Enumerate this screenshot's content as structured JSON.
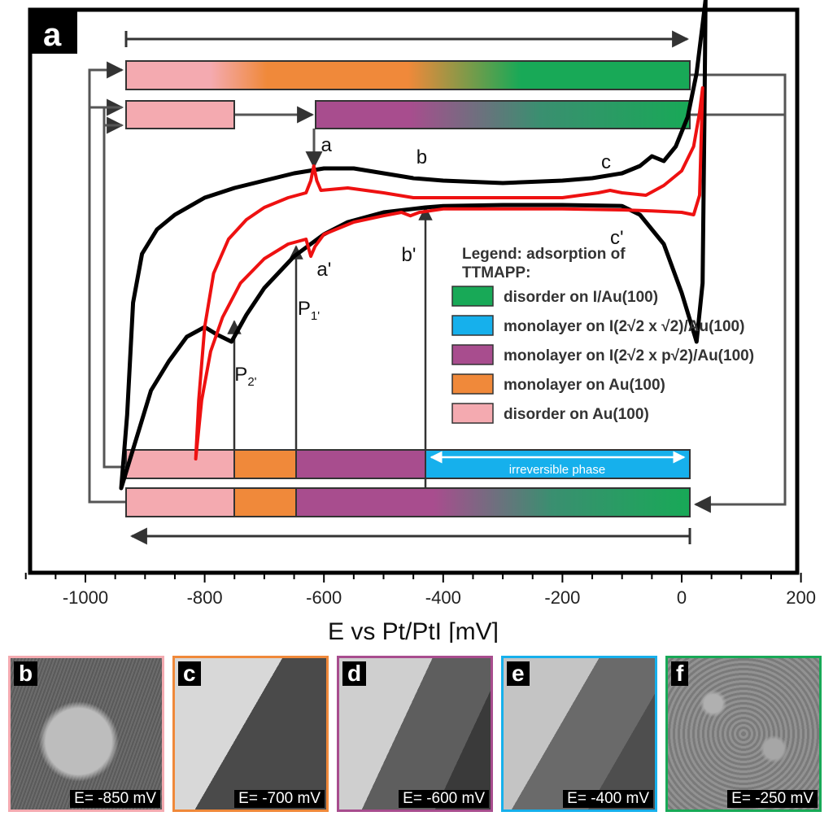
{
  "figure": {
    "panel_label": "a"
  },
  "chart_data": {
    "type": "line",
    "xlabel": "E vs Pt/PtI [mV]",
    "xlim": [
      -1100,
      200
    ],
    "xticks": [
      -1000,
      -800,
      -600,
      -400,
      -200,
      0,
      200
    ],
    "grid": false,
    "series": [
      {
        "name": "",
        "color": "#000000",
        "anodic": [
          [
            -940,
            0.1
          ],
          [
            -930,
            0.25
          ],
          [
            -920,
            0.48
          ],
          [
            -905,
            0.58
          ],
          [
            -880,
            0.63
          ],
          [
            -850,
            0.66
          ],
          [
            -800,
            0.695
          ],
          [
            -750,
            0.715
          ],
          [
            -700,
            0.73
          ],
          [
            -650,
            0.745
          ],
          [
            -600,
            0.755
          ],
          [
            -550,
            0.755
          ],
          [
            -500,
            0.745
          ],
          [
            -450,
            0.735
          ],
          [
            -400,
            0.73
          ],
          [
            -300,
            0.725
          ],
          [
            -200,
            0.73
          ],
          [
            -150,
            0.735
          ],
          [
            -100,
            0.745
          ],
          [
            -70,
            0.76
          ],
          [
            -50,
            0.78
          ],
          [
            -30,
            0.77
          ],
          [
            -10,
            0.8
          ],
          [
            10,
            0.86
          ],
          [
            25,
            0.95
          ],
          [
            35,
            1.05
          ],
          [
            40,
            1.1
          ]
        ],
        "cathodic": [
          [
            40,
            1.1
          ],
          [
            38,
            0.85
          ],
          [
            35,
            0.52
          ],
          [
            25,
            0.4
          ],
          [
            0,
            0.5
          ],
          [
            -30,
            0.6
          ],
          [
            -70,
            0.66
          ],
          [
            -100,
            0.678
          ],
          [
            -200,
            0.68
          ],
          [
            -300,
            0.68
          ],
          [
            -400,
            0.678
          ],
          [
            -430,
            0.675
          ],
          [
            -500,
            0.665
          ],
          [
            -560,
            0.645
          ],
          [
            -600,
            0.62
          ],
          [
            -650,
            0.575
          ],
          [
            -700,
            0.51
          ],
          [
            -730,
            0.455
          ],
          [
            -755,
            0.4
          ],
          [
            -780,
            0.415
          ],
          [
            -800,
            0.43
          ],
          [
            -830,
            0.41
          ],
          [
            -860,
            0.36
          ],
          [
            -890,
            0.3
          ],
          [
            -910,
            0.22
          ],
          [
            -930,
            0.14
          ],
          [
            -940,
            0.1
          ]
        ]
      },
      {
        "name": "",
        "color": "#ee1111",
        "anodic": [
          [
            -815,
            0.16
          ],
          [
            -810,
            0.28
          ],
          [
            -800,
            0.43
          ],
          [
            -785,
            0.54
          ],
          [
            -760,
            0.61
          ],
          [
            -730,
            0.65
          ],
          [
            -700,
            0.675
          ],
          [
            -660,
            0.695
          ],
          [
            -630,
            0.705
          ],
          [
            -622,
            0.73
          ],
          [
            -617,
            0.76
          ],
          [
            -612,
            0.73
          ],
          [
            -605,
            0.71
          ],
          [
            -560,
            0.715
          ],
          [
            -500,
            0.705
          ],
          [
            -450,
            0.695
          ],
          [
            -400,
            0.695
          ],
          [
            -300,
            0.695
          ],
          [
            -200,
            0.695
          ],
          [
            -140,
            0.705
          ],
          [
            -120,
            0.71
          ],
          [
            -100,
            0.705
          ],
          [
            -60,
            0.7
          ],
          [
            -30,
            0.72
          ],
          [
            0,
            0.75
          ],
          [
            20,
            0.8
          ],
          [
            30,
            0.87
          ],
          [
            35,
            0.92
          ]
        ],
        "cathodic": [
          [
            35,
            0.92
          ],
          [
            30,
            0.7
          ],
          [
            20,
            0.66
          ],
          [
            0,
            0.665
          ],
          [
            -50,
            0.668
          ],
          [
            -100,
            0.67
          ],
          [
            -200,
            0.672
          ],
          [
            -300,
            0.672
          ],
          [
            -400,
            0.672
          ],
          [
            -440,
            0.665
          ],
          [
            -455,
            0.658
          ],
          [
            -470,
            0.665
          ],
          [
            -500,
            0.658
          ],
          [
            -550,
            0.645
          ],
          [
            -600,
            0.62
          ],
          [
            -615,
            0.595
          ],
          [
            -622,
            0.575
          ],
          [
            -630,
            0.61
          ],
          [
            -660,
            0.6
          ],
          [
            -700,
            0.57
          ],
          [
            -740,
            0.52
          ],
          [
            -770,
            0.45
          ],
          [
            -790,
            0.38
          ],
          [
            -805,
            0.28
          ],
          [
            -815,
            0.16
          ]
        ]
      }
    ],
    "peak_labels": [
      {
        "text": "a",
        "x": -605,
        "y": 0.79
      },
      {
        "text": "b",
        "x": -445,
        "y": 0.765
      },
      {
        "text": "c",
        "x": -135,
        "y": 0.755
      },
      {
        "text": "a'",
        "x": -612,
        "y": 0.535
      },
      {
        "text": "b'",
        "x": -470,
        "y": 0.565
      },
      {
        "text": "c'",
        "x": -120,
        "y": 0.6
      },
      {
        "text": "P",
        "sub": "1'",
        "x": -644,
        "y": 0.455
      },
      {
        "text": "P",
        "sub": "2'",
        "x": -750,
        "y": 0.32
      }
    ],
    "legend": {
      "title_line1": "Legend: adsorption of",
      "title_line2": "TTMAPP:",
      "items": [
        {
          "label": "disorder on I/Au(100)",
          "color": "#18a957"
        },
        {
          "label": "monolayer on I(2√2 x √2)/Au(100)",
          "color": "#16b0ec"
        },
        {
          "label": "monolayer on I(2√2 x p√2)/Au(100)",
          "color": "#a84d8e"
        },
        {
          "label": "monolayer on Au(100)",
          "color": "#f0893a"
        },
        {
          "label": "disorder on Au(100)",
          "color": "#f4aab0"
        }
      ]
    },
    "phase_bars": [
      {
        "row": "anodic_top",
        "segments": [
          {
            "from": -940,
            "to": 15,
            "gradient": [
              "#f4aab0",
              "#f0893a",
              "#18a957"
            ]
          }
        ]
      },
      {
        "row": "anodic_second",
        "segments": [
          {
            "from": -940,
            "to": -755,
            "color": "#f4aab0"
          },
          {
            "from": -625,
            "to": 15,
            "gradient": [
              "#a84d8e",
              "#18a957"
            ]
          }
        ]
      },
      {
        "row": "cathodic_upper",
        "segments": [
          {
            "from": -940,
            "to": -755,
            "color": "#f4aab0"
          },
          {
            "from": -755,
            "to": -650,
            "color": "#f0893a"
          },
          {
            "from": -650,
            "to": -430,
            "color": "#a84d8e"
          },
          {
            "from": -430,
            "to": 15,
            "color": "#16b0ec"
          }
        ]
      },
      {
        "row": "cathodic_lower",
        "segments": [
          {
            "from": -940,
            "to": -755,
            "color": "#f4aab0"
          },
          {
            "from": -755,
            "to": -650,
            "color": "#f0893a"
          },
          {
            "from": -650,
            "to": 15,
            "gradient": [
              "#a84d8e",
              "#18a957"
            ]
          }
        ]
      }
    ],
    "irreversible_label": "irreversible phase"
  },
  "images": [
    {
      "letter": "b",
      "potential": "E= -850 mV",
      "border": "#f4aab0",
      "tone": "#7a7a7a"
    },
    {
      "letter": "c",
      "potential": "E= -700 mV",
      "border": "#f0893a",
      "tone": "#b8b8b8"
    },
    {
      "letter": "d",
      "potential": "E= -600 mV",
      "border": "#a84d8e",
      "tone": "#a0a0a0"
    },
    {
      "letter": "e",
      "potential": "E= -400 mV",
      "border": "#16b0ec",
      "tone": "#9a9a9a"
    },
    {
      "letter": "f",
      "potential": "E= -250 mV",
      "border": "#18a957",
      "tone": "#8c8c8c"
    }
  ]
}
